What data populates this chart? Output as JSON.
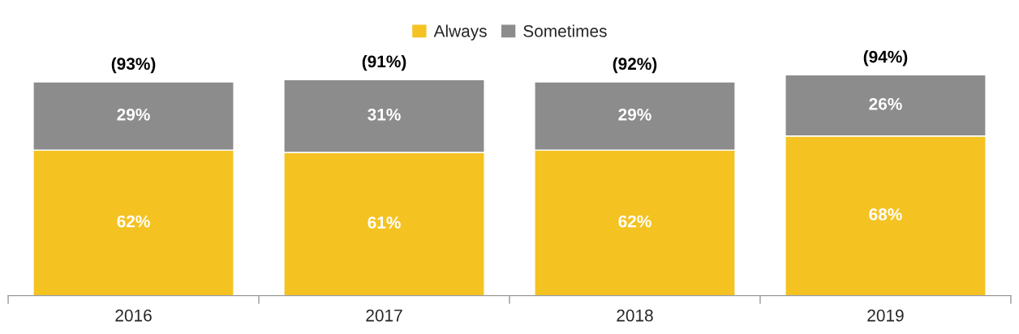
{
  "chart_data": {
    "type": "bar",
    "stacked": true,
    "categories": [
      "2016",
      "2017",
      "2018",
      "2019"
    ],
    "series": [
      {
        "name": "Always",
        "color": "#f4c322",
        "values": [
          62,
          61,
          62,
          68
        ],
        "value_labels": [
          "62%",
          "61%",
          "62%",
          "68%"
        ]
      },
      {
        "name": "Sometimes",
        "color": "#8c8c8c",
        "values": [
          29,
          31,
          29,
          26
        ],
        "value_labels": [
          "29%",
          "31%",
          "29%",
          "26%"
        ]
      }
    ],
    "annotations": [
      "(93%)",
      "(91%)",
      "(92%)",
      "(94%)"
    ],
    "legend": "top",
    "grid": false,
    "tick_labels": "x"
  }
}
